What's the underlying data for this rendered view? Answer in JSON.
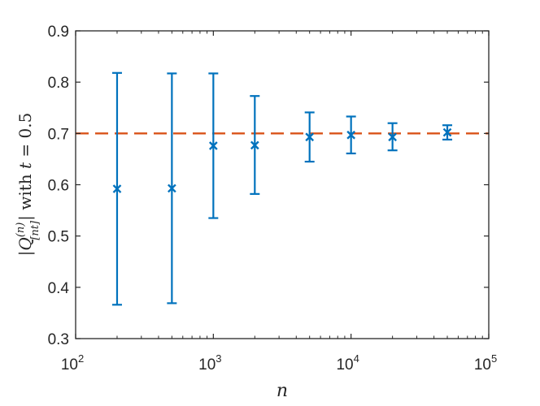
{
  "chart_data": {
    "type": "scatter",
    "xscale": "log",
    "xlim": [
      100,
      100000
    ],
    "ylim": [
      0.3,
      0.9
    ],
    "xticks": [
      100,
      1000,
      10000,
      100000
    ],
    "xtick_labels": [
      {
        "base": "10",
        "exp": "2"
      },
      {
        "base": "10",
        "exp": "3"
      },
      {
        "base": "10",
        "exp": "4"
      },
      {
        "base": "10",
        "exp": "5"
      }
    ],
    "yticks": [
      0.3,
      0.4,
      0.5,
      0.6,
      0.7,
      0.8,
      0.9
    ],
    "ytick_labels": [
      "0.3",
      "0.4",
      "0.5",
      "0.6",
      "0.7",
      "0.8",
      "0.9"
    ],
    "xlabel": "n",
    "ylabel": {
      "abs_open": "|",
      "Q": "Q",
      "sup": "(n)",
      "sub": "[nt]",
      "abs_close": "|",
      "word": " with ",
      "t": "t",
      "eq": " = 0.5"
    },
    "grid": false,
    "reference_line": {
      "y": 0.7,
      "style": "dashed",
      "color": "#D95319"
    },
    "series_color": "#0072BD",
    "points": [
      {
        "x": 200,
        "y": 0.592,
        "lower": 0.366,
        "upper": 0.818
      },
      {
        "x": 500,
        "y": 0.593,
        "lower": 0.369,
        "upper": 0.817
      },
      {
        "x": 1000,
        "y": 0.676,
        "lower": 0.535,
        "upper": 0.817
      },
      {
        "x": 2000,
        "y": 0.677,
        "lower": 0.582,
        "upper": 0.773
      },
      {
        "x": 5000,
        "y": 0.693,
        "lower": 0.645,
        "upper": 0.741
      },
      {
        "x": 10000,
        "y": 0.697,
        "lower": 0.661,
        "upper": 0.733
      },
      {
        "x": 20000,
        "y": 0.693,
        "lower": 0.667,
        "upper": 0.72
      },
      {
        "x": 50000,
        "y": 0.702,
        "lower": 0.688,
        "upper": 0.716
      }
    ]
  }
}
